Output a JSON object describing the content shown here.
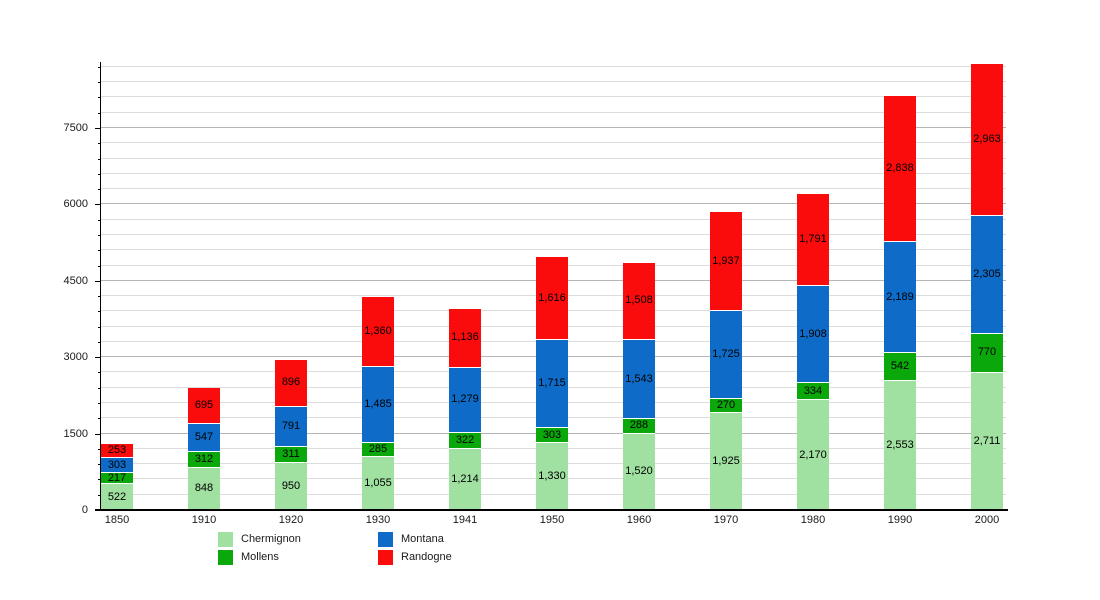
{
  "chart_data": {
    "type": "bar",
    "stacked": true,
    "title": "",
    "xlabel": "",
    "ylabel": "",
    "categories": [
      "1850",
      "1910",
      "1920",
      "1930",
      "1941",
      "1950",
      "1960",
      "1970",
      "1980",
      "1990",
      "2000"
    ],
    "series": [
      {
        "name": "Chermignon",
        "color": "#a0e0a0",
        "values": [
          522,
          848,
          950,
          1055,
          1214,
          1330,
          1520,
          1925,
          2170,
          2553,
          2711
        ]
      },
      {
        "name": "Mollens",
        "color": "#0aa80a",
        "values": [
          217,
          312,
          311,
          285,
          322,
          303,
          288,
          270,
          334,
          542,
          770
        ]
      },
      {
        "name": "Montana",
        "color": "#0e6cc8",
        "values": [
          303,
          547,
          791,
          1485,
          1279,
          1715,
          1543,
          1725,
          1908,
          2189,
          2305
        ]
      },
      {
        "name": "Randogne",
        "color": "#fa0c0c",
        "values": [
          253,
          695,
          896,
          1360,
          1136,
          1616,
          1508,
          1937,
          1791,
          2838,
          2963
        ]
      }
    ],
    "ytick_labels": [
      "0",
      "1500",
      "3000",
      "4500",
      "6000",
      "7500"
    ],
    "yticks": [
      0,
      1500,
      3000,
      4500,
      6000,
      7500
    ],
    "minor_grid_step": 300,
    "ylim": [
      0,
      8796
    ],
    "grid": "horizontal",
    "legend_position": "bottom",
    "legend_rows": [
      [
        "Chermignon",
        "Montana"
      ],
      [
        "Mollens",
        "Randogne"
      ]
    ],
    "label_text_color": "#000000",
    "background_color": "#ffffff"
  }
}
